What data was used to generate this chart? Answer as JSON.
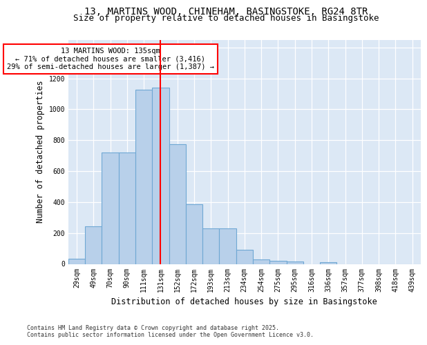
{
  "title_line1": "13, MARTINS WOOD, CHINEHAM, BASINGSTOKE, RG24 8TR",
  "title_line2": "Size of property relative to detached houses in Basingstoke",
  "xlabel": "Distribution of detached houses by size in Basingstoke",
  "ylabel": "Number of detached properties",
  "categories": [
    "29sqm",
    "49sqm",
    "70sqm",
    "90sqm",
    "111sqm",
    "131sqm",
    "152sqm",
    "172sqm",
    "193sqm",
    "213sqm",
    "234sqm",
    "254sqm",
    "275sqm",
    "295sqm",
    "316sqm",
    "336sqm",
    "357sqm",
    "377sqm",
    "398sqm",
    "418sqm",
    "439sqm"
  ],
  "values": [
    35,
    245,
    720,
    720,
    1125,
    1140,
    775,
    385,
    230,
    230,
    90,
    30,
    20,
    15,
    0,
    10,
    0,
    0,
    0,
    0,
    0
  ],
  "bar_color": "#b8d0ea",
  "bar_edgecolor": "#6fa8d4",
  "vline_color": "red",
  "vline_index": 5,
  "annotation_text": "13 MARTINS WOOD: 135sqm\n← 71% of detached houses are smaller (3,416)\n29% of semi-detached houses are larger (1,387) →",
  "annotation_box_edgecolor": "red",
  "ylim": [
    0,
    1450
  ],
  "yticks": [
    0,
    200,
    400,
    600,
    800,
    1000,
    1200,
    1400
  ],
  "background_color": "#dce8f5",
  "footer_text": "Contains HM Land Registry data © Crown copyright and database right 2025.\nContains public sector information licensed under the Open Government Licence v3.0.",
  "title_fontsize": 10,
  "subtitle_fontsize": 9,
  "tick_fontsize": 7,
  "label_fontsize": 8.5,
  "annot_fontsize": 7.5,
  "footer_fontsize": 6
}
